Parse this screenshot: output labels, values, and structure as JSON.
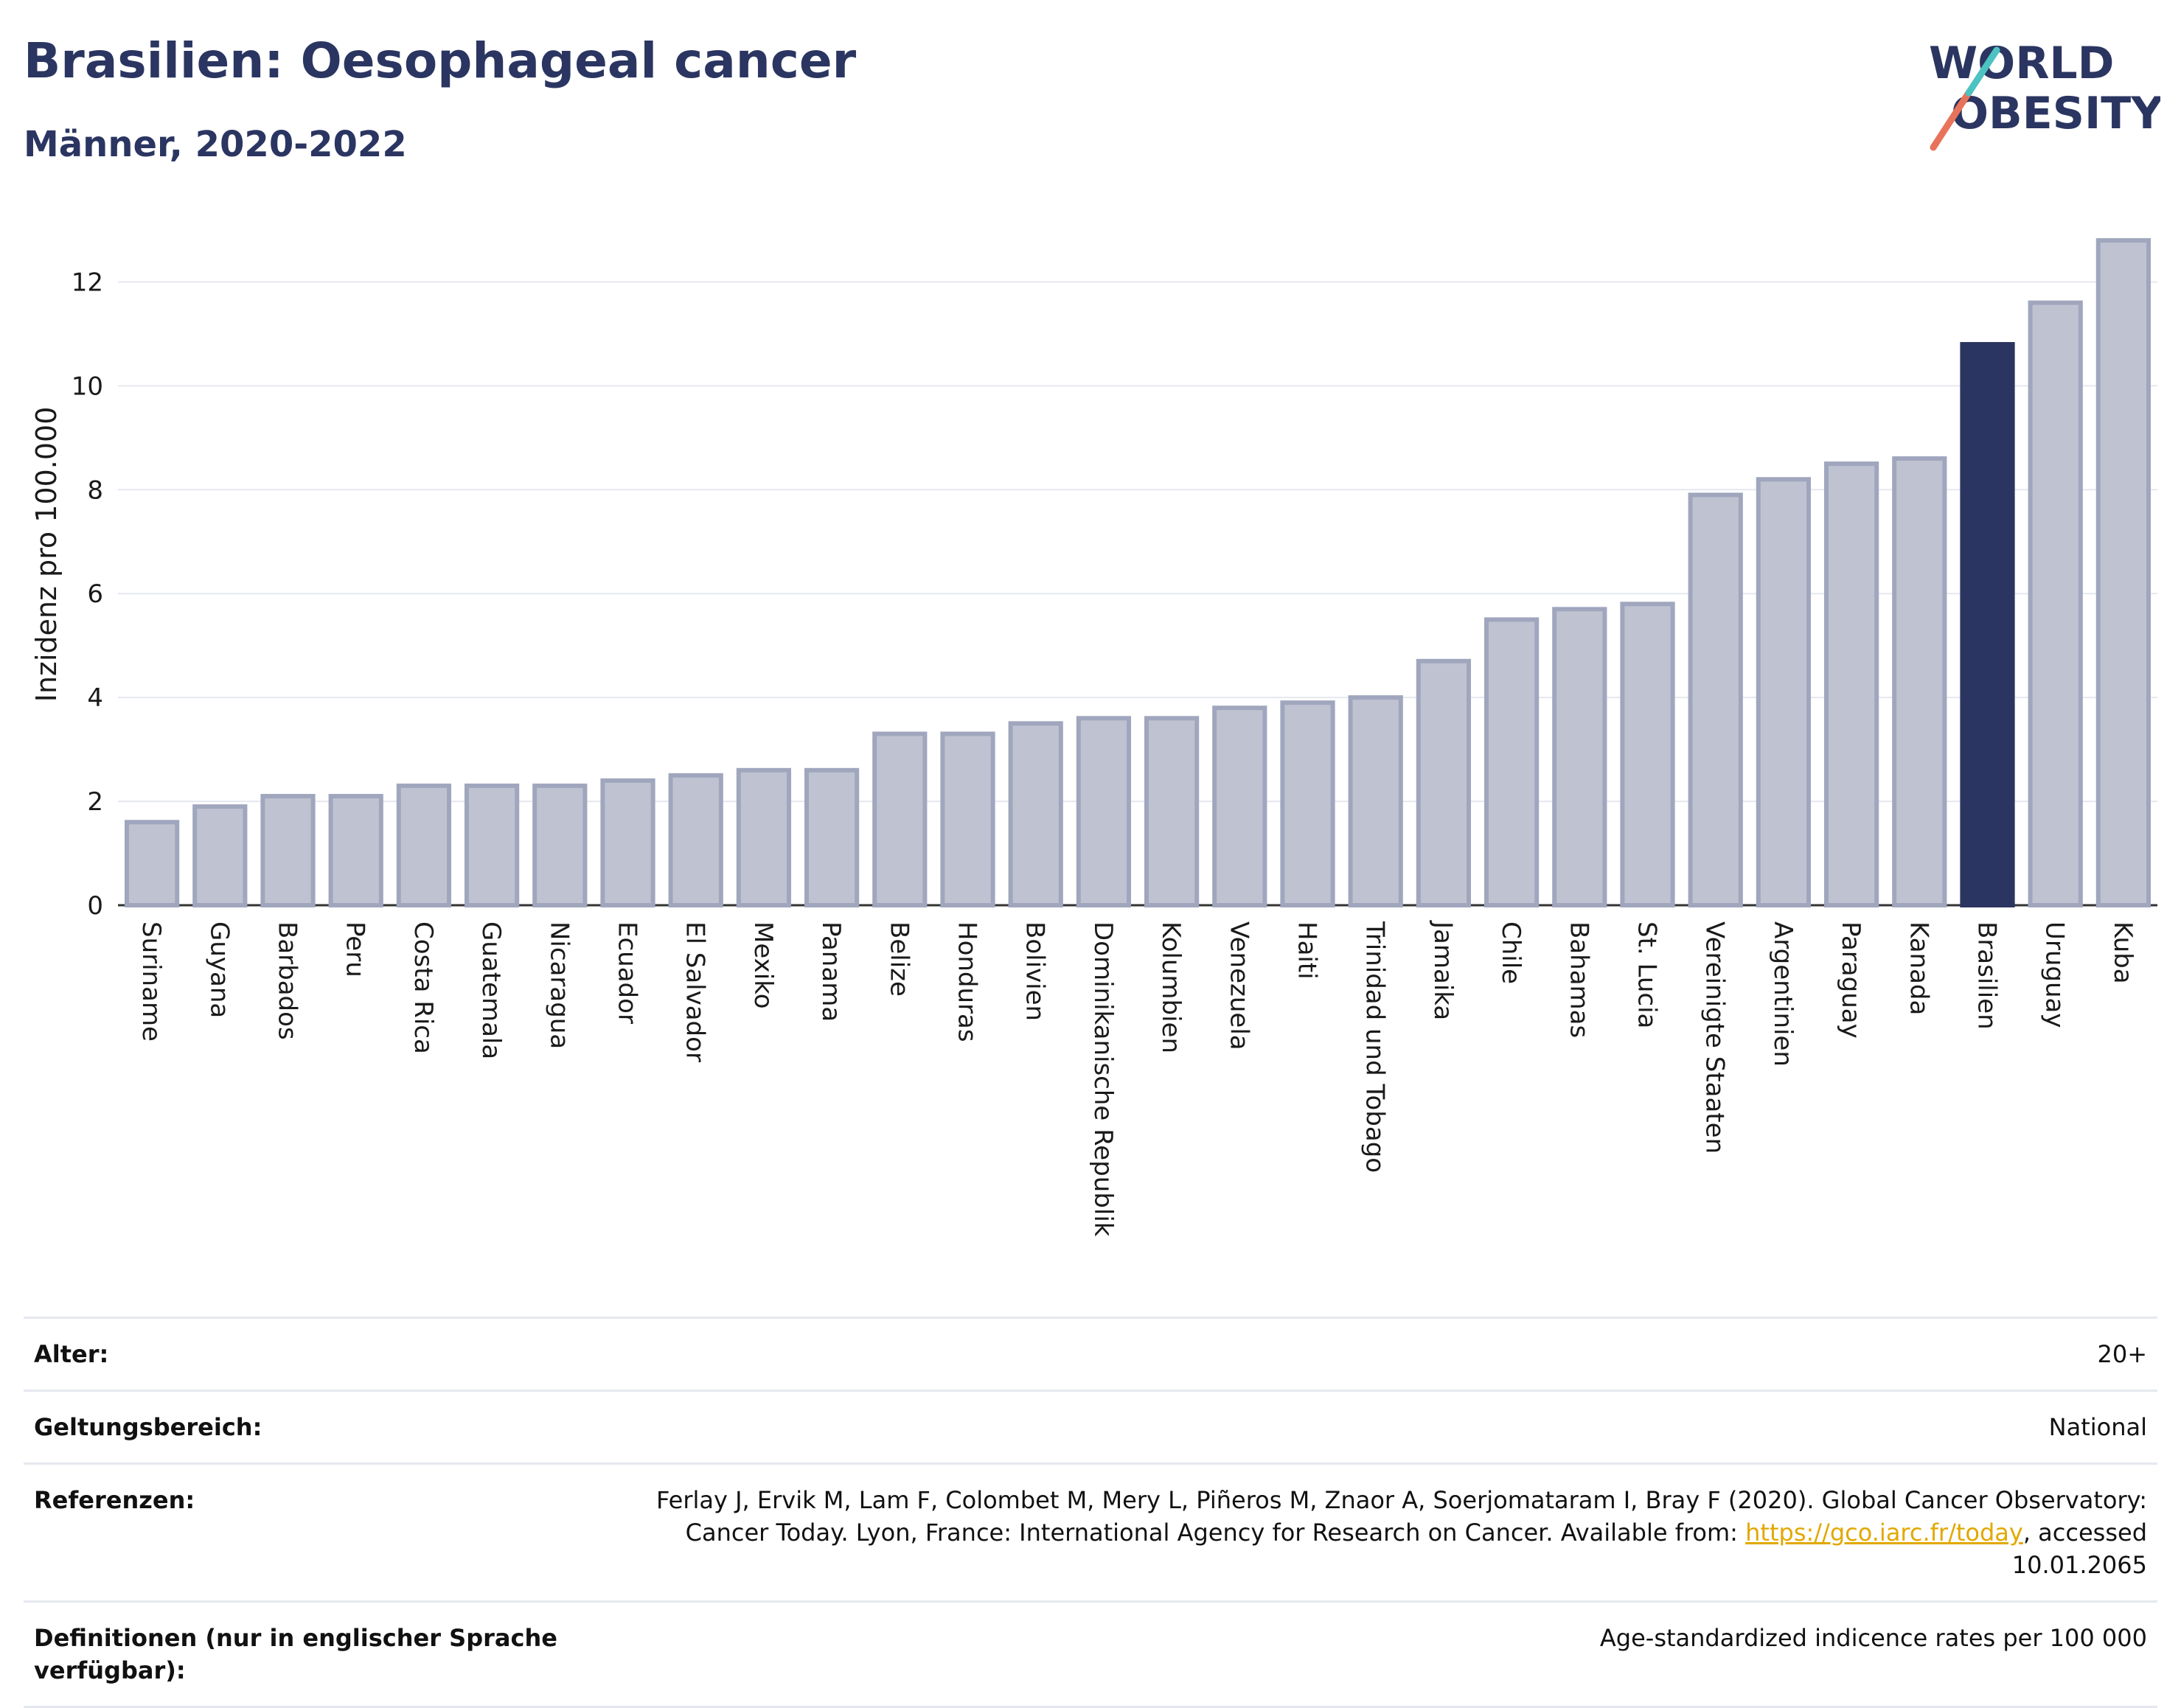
{
  "header": {
    "title": "Brasilien: Oesophageal cancer",
    "subtitle": "Männer, 2020-2022"
  },
  "logo": {
    "line1": "WORLD",
    "line2": "OBESITY",
    "accent_colors": [
      "#4cc3c1",
      "#e8735a"
    ]
  },
  "colors": {
    "bar": "#bfc3d1",
    "bar_border": "#a0a6bd",
    "highlight": "#2b3561",
    "grid": "#e6e8ef",
    "text": "#2b3561",
    "link": "#e2a800"
  },
  "chart_data": {
    "type": "bar",
    "ylabel": "Inzidenz pro 100.000",
    "xlabel": "",
    "ylim": [
      0,
      13
    ],
    "yticks": [
      0,
      2,
      4,
      6,
      8,
      10,
      12
    ],
    "grid": true,
    "highlight": "Brasilien",
    "categories": [
      "Suriname",
      "Guyana",
      "Barbados",
      "Peru",
      "Costa Rica",
      "Guatemala",
      "Nicaragua",
      "Ecuador",
      "El Salvador",
      "Mexiko",
      "Panama",
      "Belize",
      "Honduras",
      "Bolivien",
      "Dominikanische Republik",
      "Kolumbien",
      "Venezuela",
      "Haiti",
      "Trinidad und Tobago",
      "Jamaika",
      "Chile",
      "Bahamas",
      "St. Lucia",
      "Vereinigte Staaten",
      "Argentinien",
      "Paraguay",
      "Kanada",
      "Brasilien",
      "Uruguay",
      "Kuba"
    ],
    "values": [
      1.6,
      1.9,
      2.1,
      2.1,
      2.3,
      2.3,
      2.3,
      2.4,
      2.5,
      2.6,
      2.6,
      3.3,
      3.3,
      3.5,
      3.6,
      3.6,
      3.8,
      3.9,
      4.0,
      4.7,
      5.5,
      5.7,
      5.8,
      7.9,
      8.2,
      8.5,
      8.6,
      10.8,
      11.6,
      12.8
    ]
  },
  "info": {
    "age_label": "Alter:",
    "age_value": "20+",
    "scope_label": "Geltungsbereich:",
    "scope_value": "National",
    "ref_label": "Referenzen:",
    "ref_text_1": "Ferlay J, Ervik M, Lam F, Colombet M, Mery L, Piñeros M, Znaor A, Soerjomataram I, Bray F (2020). Global Cancer Observatory: Cancer Today. Lyon, France: International Agency for Research on Cancer. Available from: ",
    "ref_link": "https://gco.iarc.fr/today",
    "ref_text_2": ", accessed 10.01.2065",
    "def_label": "Definitionen (nur in englischer Sprache verfügbar):",
    "def_value": "Age-standardized indicence rates per 100 000"
  }
}
